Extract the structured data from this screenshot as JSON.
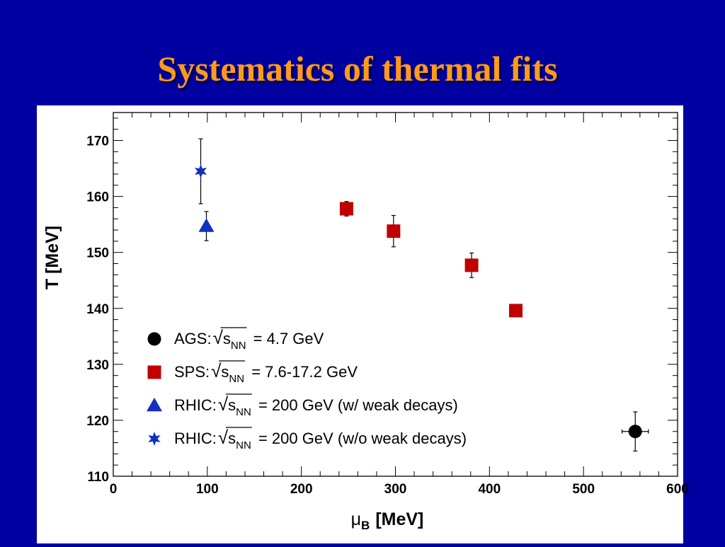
{
  "slide": {
    "title": "Systematics of thermal fits"
  },
  "chart_data": {
    "type": "scatter",
    "title": "",
    "xlabel_main": "μ",
    "xlabel_sub": "B",
    "xlabel_unit": "[MeV]",
    "ylabel": "T [MeV]",
    "xlim": [
      0,
      600
    ],
    "ylim": [
      110,
      175
    ],
    "x_ticks": [
      0,
      100,
      200,
      300,
      400,
      500,
      600
    ],
    "y_ticks": [
      110,
      120,
      130,
      140,
      150,
      160,
      170
    ],
    "grid": false,
    "legend_position": "bottom-left",
    "series": [
      {
        "name": "AGS: √s_NN = 4.7 GeV",
        "marker": "circle",
        "color": "#000000",
        "points": [
          {
            "x": 555,
            "y": 118,
            "yerr": 3.5,
            "xerr": 14
          }
        ]
      },
      {
        "name": "SPS: √s_NN = 7.6-17.2 GeV",
        "marker": "square",
        "color": "#c00000",
        "points": [
          {
            "x": 248,
            "y": 157.8,
            "yerr": 1.3,
            "xerr": 0
          },
          {
            "x": 298,
            "y": 153.8,
            "yerr": 2.8,
            "xerr": 0
          },
          {
            "x": 381,
            "y": 147.7,
            "yerr": 2.2,
            "xerr": 0
          },
          {
            "x": 428,
            "y": 139.6,
            "yerr": 0,
            "xerr": 0
          }
        ]
      },
      {
        "name": "RHIC: √s_NN = 200 GeV (w/ weak decays)",
        "marker": "triangle",
        "color": "#1030c0",
        "points": [
          {
            "x": 99,
            "y": 154.7,
            "yerr": 2.6,
            "xerr": 0
          }
        ]
      },
      {
        "name": "RHIC: √s_NN = 200 GeV (w/o weak decays)",
        "marker": "star",
        "color": "#1030c0",
        "points": [
          {
            "x": 93,
            "y": 164.5,
            "yerr": 5.8,
            "xerr": 0
          }
        ]
      }
    ],
    "legend": [
      {
        "prefix": "AGS:",
        "sqrt": "s",
        "sub": "NN",
        "suffix": "= 4.7 GeV",
        "marker": "circle",
        "color": "#000000"
      },
      {
        "prefix": "SPS:",
        "sqrt": "s",
        "sub": "NN",
        "suffix": "= 7.6-17.2 GeV",
        "marker": "square",
        "color": "#c00000"
      },
      {
        "prefix": "RHIC:",
        "sqrt": "s",
        "sub": "NN",
        "suffix": "= 200 GeV (w/ weak decays)",
        "marker": "triangle",
        "color": "#1030c0"
      },
      {
        "prefix": "RHIC:",
        "sqrt": "s",
        "sub": "NN",
        "suffix": "= 200 GeV (w/o weak decays)",
        "marker": "star",
        "color": "#1030c0"
      }
    ]
  }
}
